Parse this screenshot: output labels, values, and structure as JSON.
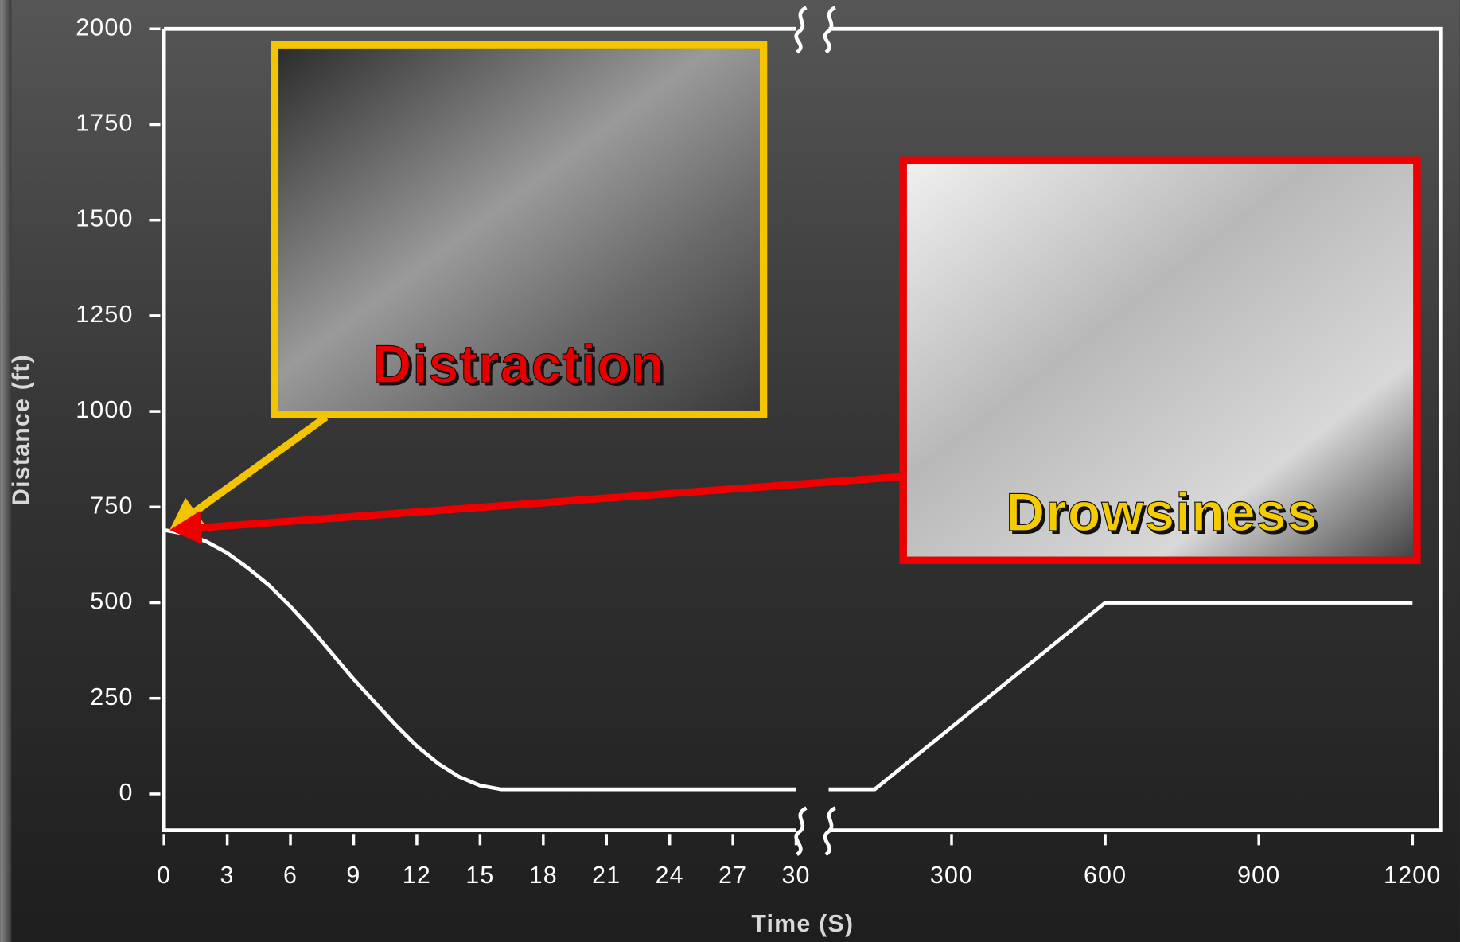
{
  "chart_data": {
    "type": "line",
    "x_label": "Time (S)",
    "y_label": "Distance (ft)",
    "ylim": [
      -95,
      2000
    ],
    "yticks": [
      0,
      250,
      500,
      750,
      1000,
      1250,
      1500,
      1750,
      2000
    ],
    "line_color": "#ffffff",
    "panels": [
      {
        "xlim": [
          0,
          30
        ],
        "xticks": [
          0,
          3,
          6,
          9,
          12,
          15,
          18,
          21,
          24,
          27,
          30
        ],
        "x": [
          0,
          1,
          2,
          3,
          4,
          5,
          6,
          7,
          8,
          9,
          10,
          11,
          12,
          13,
          14,
          15,
          16,
          18,
          21,
          24,
          27,
          30
        ],
        "values": [
          690,
          680,
          660,
          630,
          590,
          545,
          490,
          430,
          365,
          300,
          240,
          180,
          125,
          80,
          45,
          22,
          12,
          12,
          12,
          12,
          12,
          12
        ]
      },
      {
        "xlim": [
          60,
          1256
        ],
        "xticks": [
          300,
          600,
          900,
          1200
        ],
        "x": [
          60,
          150,
          600,
          1200
        ],
        "values": [
          12,
          12,
          500,
          500
        ]
      }
    ],
    "annotations": [
      {
        "text": "Distraction",
        "frame_color": "#f5c400",
        "text_color": "#e80000"
      },
      {
        "text": "Drowsiness",
        "frame_color": "#ee0000",
        "text_color": "#f5cc00"
      }
    ]
  }
}
